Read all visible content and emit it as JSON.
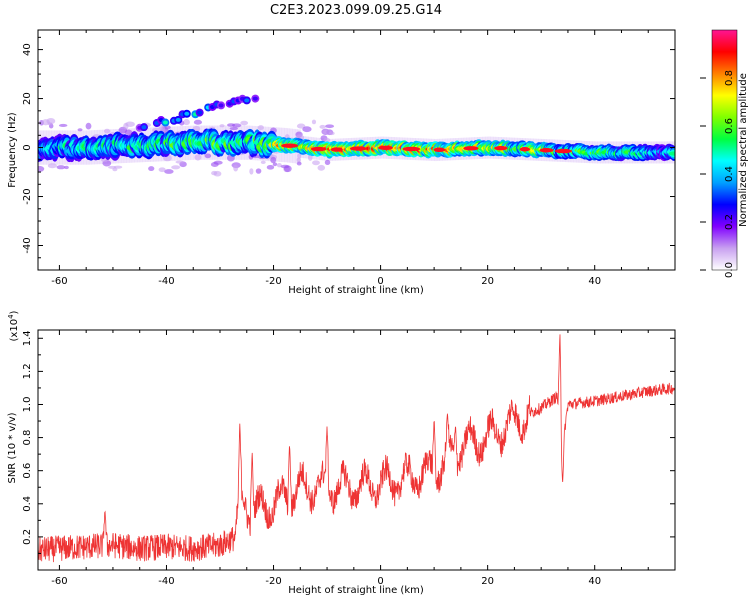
{
  "title": "C2E3.2023.099.09.25.G14",
  "chart_data": [
    {
      "type": "heatmap",
      "xlabel": "Height of straight line (km)",
      "ylabel": "Frequency (Hz)",
      "xlim": [
        -64,
        55
      ],
      "ylim": [
        -50,
        48
      ],
      "x_ticks": [
        -60,
        -40,
        -20,
        0,
        20,
        40
      ],
      "y_ticks": [
        -40,
        -20,
        0,
        20,
        40
      ],
      "colorbar": {
        "label": "Normalized spectral amplitude",
        "range": [
          0,
          1
        ],
        "ticks": [
          0.0,
          0.2,
          0.4,
          0.6,
          0.8
        ],
        "colormap": [
          "#ffffff",
          "#c8a0f0",
          "#8000ff",
          "#0000ff",
          "#00a0ff",
          "#00ffff",
          "#00ff40",
          "#80ff00",
          "#ffff00",
          "#ff8000",
          "#ff0000",
          "#ff1493"
        ]
      },
      "grid": false,
      "ridges": [
        {
          "x": [
            -64,
            -55,
            -45,
            -35,
            -25,
            -18,
            -10,
            0,
            10,
            20,
            30,
            40,
            55
          ],
          "frequency": [
            0,
            0,
            1,
            2,
            2,
            1,
            -1,
            0,
            -1,
            0,
            -1,
            -2,
            -2
          ],
          "amplitude": [
            0.45,
            0.5,
            0.5,
            0.6,
            0.55,
            0.75,
            0.8,
            0.85,
            0.8,
            0.7,
            0.65,
            0.55,
            0.45
          ]
        },
        {
          "x": [
            -45,
            -38,
            -30,
            -22
          ],
          "frequency": [
            8,
            12,
            17,
            21
          ],
          "amplitude": [
            0.3,
            0.55,
            0.35,
            0.3
          ]
        }
      ]
    },
    {
      "type": "line",
      "xlabel": "Height of straight line (km)",
      "ylabel": "SNR (10 * v/v)",
      "y_scale_label": "(x10",
      "y_scale_exponent": "4",
      "y_scale_suffix": ")",
      "xlim": [
        -64,
        55
      ],
      "ylim": [
        0,
        1.45
      ],
      "x_ticks": [
        -60,
        -40,
        -20,
        0,
        20,
        40
      ],
      "y_ticks": [
        0.2,
        0.4,
        0.6,
        0.8,
        1.0,
        1.2,
        1.4
      ],
      "line_color": "#ee3333",
      "series": [
        {
          "x": [
            -64,
            -60,
            -55,
            -50,
            -45,
            -40,
            -35,
            -30,
            -27,
            -26,
            -24,
            -20,
            -17,
            -15,
            -10,
            -5,
            0,
            5,
            10,
            14,
            15,
            20,
            25,
            30,
            33,
            34,
            35,
            40,
            45,
            50,
            55
          ],
          "values": [
            0.12,
            0.13,
            0.14,
            0.15,
            0.13,
            0.14,
            0.13,
            0.15,
            0.2,
            0.45,
            0.35,
            0.4,
            0.45,
            0.5,
            0.5,
            0.5,
            0.52,
            0.55,
            0.6,
            0.7,
            0.75,
            0.8,
            0.9,
            0.98,
            1.05,
            0.75,
            1.0,
            1.02,
            1.05,
            1.08,
            1.1
          ],
          "spikes": [
            [
              -51.5,
              0.37
            ],
            [
              -26.3,
              0.89
            ],
            [
              -24,
              0.73
            ],
            [
              -17,
              0.78
            ],
            [
              -10,
              0.88
            ],
            [
              10,
              0.92
            ],
            [
              12.5,
              0.96
            ],
            [
              14,
              0.88
            ],
            [
              33.5,
              1.45
            ],
            [
              34,
              0.52
            ]
          ]
        }
      ]
    }
  ]
}
